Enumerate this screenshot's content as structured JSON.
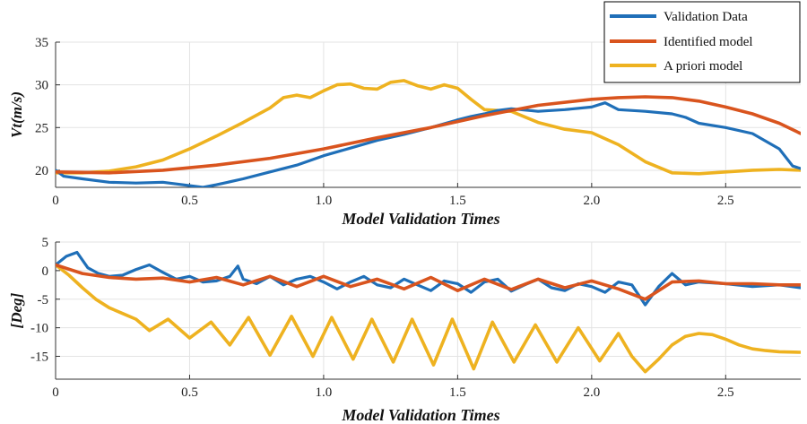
{
  "colors": {
    "validation": "#1f6fb8",
    "identified": "#d9541e",
    "apriori": "#eeb220"
  },
  "legend": {
    "entries": [
      "Validation Data",
      "Identified model",
      "A priori model"
    ]
  },
  "chart_data": [
    {
      "type": "line",
      "title": "",
      "xlabel": "Model Validation Times",
      "ylabel": "Vt(m/s)",
      "xlim": [
        0,
        2.78
      ],
      "ylim": [
        18,
        35
      ],
      "xticks": [
        0,
        0.5,
        1.0,
        1.5,
        2.0,
        2.5
      ],
      "xtick_labels": [
        "0",
        "0.5",
        "1.0",
        "1.5",
        "2.0",
        "2.5"
      ],
      "yticks": [
        20,
        25,
        30,
        35
      ],
      "ytick_labels": [
        "20",
        "25",
        "30",
        "35"
      ],
      "grid": true,
      "series": [
        {
          "name": "Validation Data",
          "key": "validation",
          "x": [
            0,
            0.03,
            0.1,
            0.2,
            0.3,
            0.4,
            0.5,
            0.55,
            0.6,
            0.7,
            0.8,
            0.9,
            1.0,
            1.1,
            1.2,
            1.3,
            1.4,
            1.5,
            1.55,
            1.6,
            1.65,
            1.7,
            1.8,
            1.9,
            2.0,
            2.05,
            2.1,
            2.2,
            2.3,
            2.35,
            2.4,
            2.5,
            2.6,
            2.7,
            2.75,
            2.78
          ],
          "y": [
            20.0,
            19.3,
            19.0,
            18.6,
            18.5,
            18.6,
            18.2,
            18.0,
            18.3,
            19.0,
            19.8,
            20.6,
            21.7,
            22.6,
            23.5,
            24.2,
            25.0,
            25.9,
            26.3,
            26.6,
            27.0,
            27.2,
            26.9,
            27.1,
            27.4,
            27.9,
            27.1,
            26.9,
            26.6,
            26.2,
            25.5,
            25.0,
            24.3,
            22.5,
            20.5,
            20.2
          ]
        },
        {
          "name": "Identified model",
          "key": "identified",
          "x": [
            0,
            0.2,
            0.4,
            0.6,
            0.8,
            1.0,
            1.2,
            1.4,
            1.6,
            1.8,
            2.0,
            2.1,
            2.2,
            2.3,
            2.4,
            2.5,
            2.6,
            2.7,
            2.78
          ],
          "y": [
            19.8,
            19.7,
            20.0,
            20.6,
            21.4,
            22.5,
            23.8,
            25.0,
            26.4,
            27.6,
            28.3,
            28.5,
            28.6,
            28.5,
            28.1,
            27.4,
            26.6,
            25.5,
            24.3
          ]
        },
        {
          "name": "A priori model",
          "key": "apriori",
          "x": [
            0,
            0.1,
            0.2,
            0.3,
            0.4,
            0.5,
            0.6,
            0.7,
            0.8,
            0.85,
            0.9,
            0.95,
            1.0,
            1.05,
            1.1,
            1.15,
            1.2,
            1.25,
            1.3,
            1.35,
            1.4,
            1.45,
            1.5,
            1.55,
            1.6,
            1.7,
            1.8,
            1.9,
            2.0,
            2.1,
            2.2,
            2.3,
            2.4,
            2.5,
            2.6,
            2.7,
            2.78
          ],
          "y": [
            19.7,
            19.7,
            19.9,
            20.4,
            21.2,
            22.5,
            24.0,
            25.6,
            27.3,
            28.5,
            28.8,
            28.5,
            29.3,
            30.0,
            30.1,
            29.6,
            29.5,
            30.3,
            30.5,
            29.9,
            29.5,
            30.0,
            29.6,
            28.3,
            27.1,
            26.9,
            25.6,
            24.8,
            24.4,
            23.0,
            21.0,
            19.7,
            19.6,
            19.8,
            20.0,
            20.1,
            20.0
          ]
        }
      ]
    },
    {
      "type": "line",
      "title": "",
      "xlabel": "Model Validation Times",
      "ylabel": "[Deg]",
      "xlim": [
        0,
        2.78
      ],
      "ylim": [
        -19,
        5
      ],
      "xticks": [
        0,
        0.5,
        1.0,
        1.5,
        2.0,
        2.5
      ],
      "xtick_labels": [
        "0",
        "0.5",
        "1.0",
        "1.5",
        "2.0",
        "2.5"
      ],
      "yticks": [
        5,
        0,
        -5,
        -10,
        -15
      ],
      "ytick_labels": [
        "5",
        "0",
        "-5",
        "-10",
        "-15"
      ],
      "grid": true,
      "series": [
        {
          "name": "Validation Data",
          "key": "validation",
          "x": [
            0,
            0.04,
            0.08,
            0.12,
            0.16,
            0.2,
            0.25,
            0.3,
            0.35,
            0.4,
            0.45,
            0.5,
            0.55,
            0.6,
            0.65,
            0.68,
            0.7,
            0.75,
            0.8,
            0.85,
            0.9,
            0.95,
            1.0,
            1.05,
            1.1,
            1.15,
            1.2,
            1.25,
            1.3,
            1.35,
            1.4,
            1.45,
            1.5,
            1.55,
            1.6,
            1.65,
            1.7,
            1.75,
            1.8,
            1.85,
            1.9,
            1.95,
            2.0,
            2.05,
            2.1,
            2.15,
            2.2,
            2.25,
            2.3,
            2.35,
            2.4,
            2.5,
            2.6,
            2.7,
            2.78
          ],
          "y": [
            1.0,
            2.5,
            3.2,
            0.5,
            -0.5,
            -1.0,
            -0.8,
            0.2,
            1.0,
            -0.3,
            -1.5,
            -1.0,
            -2.0,
            -1.8,
            -1.0,
            0.8,
            -1.5,
            -2.3,
            -1.0,
            -2.5,
            -1.5,
            -1.0,
            -2.0,
            -3.2,
            -2.0,
            -1.0,
            -2.5,
            -3.0,
            -1.5,
            -2.5,
            -3.5,
            -1.8,
            -2.3,
            -3.8,
            -2.0,
            -1.5,
            -3.6,
            -2.5,
            -1.5,
            -3.0,
            -3.5,
            -2.3,
            -2.8,
            -3.8,
            -2.0,
            -2.5,
            -6.0,
            -2.8,
            -0.5,
            -2.5,
            -2.0,
            -2.3,
            -2.8,
            -2.5,
            -3.0
          ]
        },
        {
          "name": "Identified model",
          "key": "identified",
          "x": [
            0,
            0.1,
            0.2,
            0.3,
            0.4,
            0.5,
            0.6,
            0.7,
            0.8,
            0.9,
            1.0,
            1.1,
            1.2,
            1.3,
            1.4,
            1.5,
            1.6,
            1.7,
            1.8,
            1.9,
            2.0,
            2.1,
            2.2,
            2.3,
            2.4,
            2.5,
            2.6,
            2.7,
            2.78
          ],
          "y": [
            1.0,
            -0.5,
            -1.2,
            -1.5,
            -1.3,
            -2.0,
            -1.2,
            -2.5,
            -1.0,
            -2.8,
            -1.0,
            -2.8,
            -1.5,
            -3.2,
            -1.2,
            -3.5,
            -1.5,
            -3.3,
            -1.5,
            -3.0,
            -1.8,
            -3.2,
            -5.0,
            -2.0,
            -1.8,
            -2.3,
            -2.3,
            -2.5,
            -2.5
          ]
        },
        {
          "name": "A priori model",
          "key": "apriori",
          "x": [
            0,
            0.05,
            0.1,
            0.15,
            0.2,
            0.25,
            0.3,
            0.35,
            0.42,
            0.5,
            0.58,
            0.65,
            0.72,
            0.8,
            0.88,
            0.96,
            1.03,
            1.11,
            1.18,
            1.26,
            1.33,
            1.41,
            1.48,
            1.56,
            1.63,
            1.71,
            1.79,
            1.87,
            1.95,
            2.03,
            2.1,
            2.15,
            2.2,
            2.25,
            2.3,
            2.35,
            2.4,
            2.45,
            2.5,
            2.55,
            2.6,
            2.65,
            2.7,
            2.78
          ],
          "y": [
            1.0,
            -0.8,
            -3.0,
            -5.0,
            -6.5,
            -7.5,
            -8.5,
            -10.5,
            -8.5,
            -11.8,
            -9.0,
            -13.0,
            -8.2,
            -14.8,
            -8.0,
            -15.0,
            -8.2,
            -15.5,
            -8.5,
            -16.0,
            -8.5,
            -16.5,
            -8.5,
            -17.2,
            -9.0,
            -16.0,
            -9.5,
            -16.0,
            -10.0,
            -15.8,
            -11.0,
            -15.0,
            -17.7,
            -15.5,
            -13.0,
            -11.5,
            -11.0,
            -11.2,
            -12.0,
            -13.0,
            -13.7,
            -14.0,
            -14.2,
            -14.3
          ]
        }
      ]
    }
  ]
}
